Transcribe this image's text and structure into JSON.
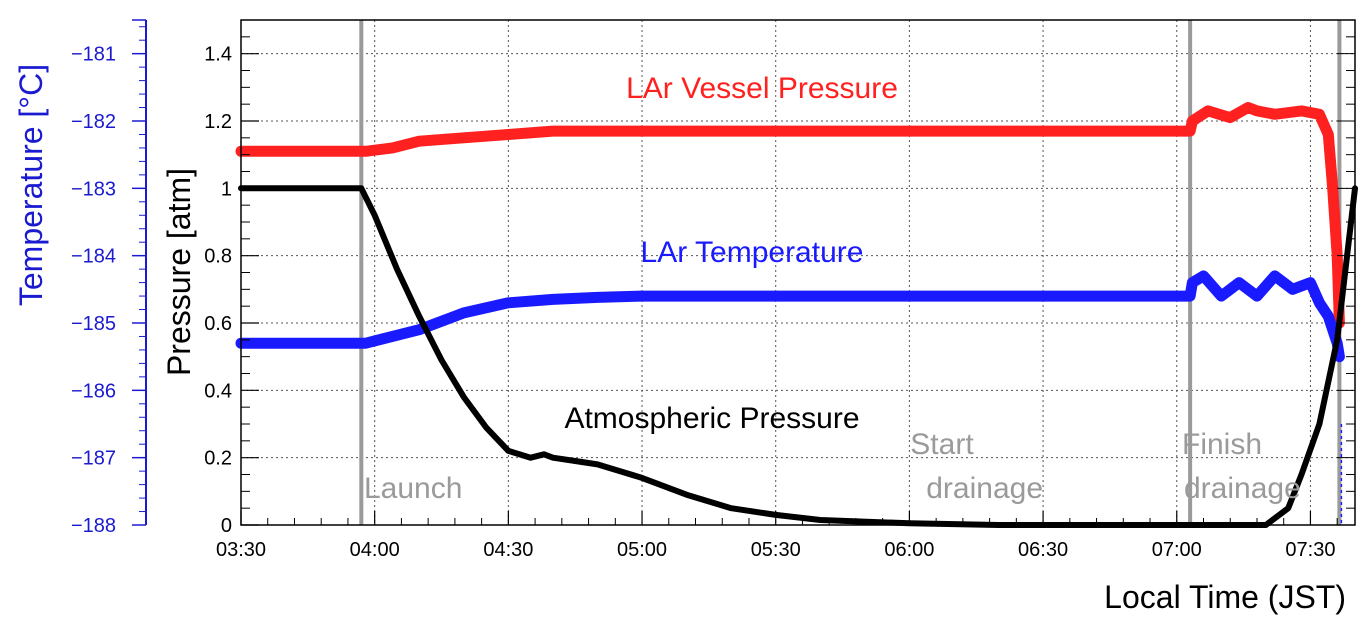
{
  "chart_data": {
    "type": "line",
    "title": "",
    "xlabel": "Local Time (JST)",
    "ylabel": "Pressure [atm]",
    "y2label": "Temperature [°C]",
    "x_ticks": [
      "03:30",
      "04:00",
      "04:30",
      "05:00",
      "05:30",
      "06:00",
      "06:30",
      "07:00",
      "07:30"
    ],
    "x_range_minutes": [
      210,
      460
    ],
    "y_ticks": [
      "0",
      "0.2",
      "0.4",
      "0.6",
      "0.8",
      "1",
      "1.2",
      "1.4"
    ],
    "ylim": [
      0,
      1.5
    ],
    "y2_ticks": [
      "−188",
      "−187",
      "−186",
      "−185",
      "−184",
      "−183",
      "−182",
      "−181"
    ],
    "y2lim": [
      -188,
      -180.5
    ],
    "grid": true,
    "colors": {
      "vessel": "#ff2020",
      "temperature": "#1a1aff",
      "atmospheric": "#000000",
      "events": "#9a9a9a",
      "axis2": "#1a1ad0"
    },
    "series": [
      {
        "name": "LAr Vessel Pressure",
        "axis": "pressure",
        "color": "#ff2020",
        "x": [
          210,
          220,
          230,
          238,
          244,
          250,
          260,
          270,
          280,
          290,
          300,
          320,
          350,
          380,
          410,
          423,
          423.5,
          427,
          432,
          436,
          438,
          442,
          448,
          452,
          454,
          455,
          456,
          456.5
        ],
        "values": [
          1.11,
          1.11,
          1.11,
          1.11,
          1.12,
          1.14,
          1.15,
          1.16,
          1.17,
          1.17,
          1.17,
          1.17,
          1.17,
          1.17,
          1.17,
          1.17,
          1.2,
          1.23,
          1.21,
          1.24,
          1.23,
          1.22,
          1.23,
          1.22,
          1.16,
          1.0,
          0.8,
          0.6
        ]
      },
      {
        "name": "LAr Temperature",
        "axis": "temperature",
        "color": "#1a1aff",
        "x": [
          210,
          220,
          230,
          238,
          250,
          260,
          270,
          280,
          290,
          300,
          330,
          360,
          390,
          410,
          423,
          423.5,
          426,
          430,
          434,
          438,
          442,
          446,
          450,
          452,
          454,
          455,
          456,
          456.5
        ],
        "values": [
          -185.3,
          -185.3,
          -185.3,
          -185.3,
          -185.1,
          -184.85,
          -184.7,
          -184.65,
          -184.62,
          -184.6,
          -184.6,
          -184.6,
          -184.6,
          -184.6,
          -184.6,
          -184.4,
          -184.3,
          -184.6,
          -184.4,
          -184.6,
          -184.3,
          -184.5,
          -184.4,
          -184.7,
          -184.9,
          -185.1,
          -185.3,
          -185.5
        ]
      },
      {
        "name": "Atmospheric Pressure",
        "axis": "pressure",
        "color": "#000000",
        "x": [
          210,
          220,
          230,
          237,
          240,
          245,
          250,
          255,
          260,
          265,
          270,
          275,
          278,
          280,
          285,
          290,
          295,
          300,
          310,
          320,
          330,
          340,
          360,
          380,
          400,
          420,
          440,
          445,
          448,
          452,
          456,
          460
        ],
        "values": [
          1.0,
          1.0,
          1.0,
          1.0,
          0.92,
          0.76,
          0.62,
          0.49,
          0.38,
          0.29,
          0.22,
          0.2,
          0.21,
          0.2,
          0.19,
          0.18,
          0.16,
          0.14,
          0.09,
          0.05,
          0.03,
          0.015,
          0.005,
          0.0,
          0.0,
          0.0,
          0.0,
          0.05,
          0.15,
          0.3,
          0.55,
          1.0
        ]
      }
    ],
    "events": [
      {
        "x": 237,
        "label": "Launch"
      },
      {
        "x": 423,
        "label": "Start\ndrainage"
      },
      {
        "x": 456.5,
        "label": "Finish\ndrainage"
      }
    ],
    "annotations": [
      {
        "text": "LAr Vessel Pressure",
        "color": "#ff2020"
      },
      {
        "text": "LAr Temperature",
        "color": "#1a1aff"
      },
      {
        "text": "Atmospheric Pressure",
        "color": "#000000"
      }
    ]
  }
}
